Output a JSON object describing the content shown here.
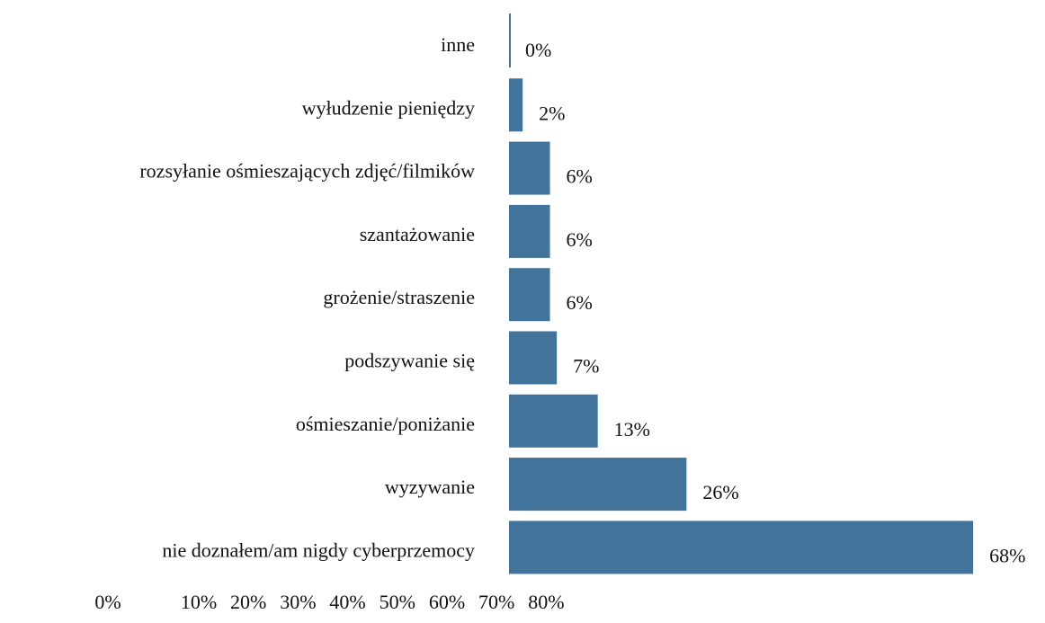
{
  "chart_data": {
    "type": "bar",
    "categories": [
      "inne",
      "wyłudzenie pieniędzy",
      "rozsyłanie ośmieszających zdjęć/filmików",
      "szantażowanie",
      "grożenie/straszenie",
      "podszywanie się",
      "ośmieszanie/poniżanie",
      "wyzywanie",
      "nie doznałem/am nigdy cyberprzemocy"
    ],
    "values": [
      0,
      2,
      6,
      6,
      6,
      7,
      13,
      26,
      68
    ],
    "value_labels": [
      "0%",
      "2%",
      "6%",
      "6%",
      "6%",
      "7%",
      "13%",
      "26%",
      "68%"
    ],
    "color": "#41739b",
    "xlim": [
      0,
      80
    ],
    "xticks": [
      {
        "value": 0,
        "label": "0%"
      },
      {
        "value": 10,
        "label": "10%"
      },
      {
        "value": 20,
        "label": "20%"
      },
      {
        "value": 30,
        "label": "30%"
      },
      {
        "value": 40,
        "label": "40%"
      },
      {
        "value": 50,
        "label": "50%"
      },
      {
        "value": 60,
        "label": "60%"
      },
      {
        "value": 70,
        "label": "70%"
      },
      {
        "value": 80,
        "label": "80%"
      }
    ],
    "grid": false
  }
}
